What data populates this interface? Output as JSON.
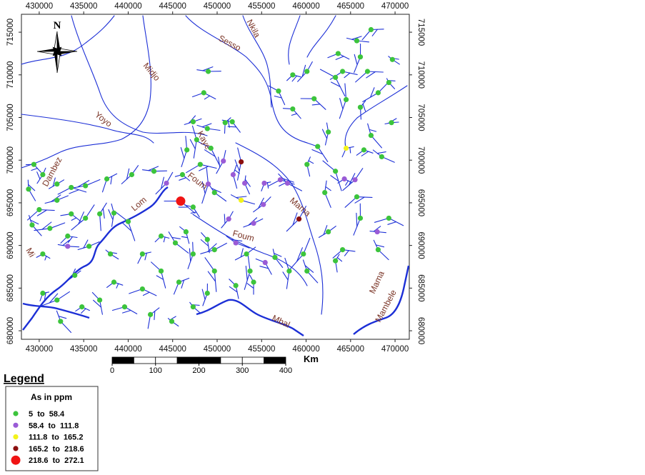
{
  "map": {
    "xlim": [
      428000,
      471600
    ],
    "ylim": [
      679000,
      717100
    ],
    "xticks": [
      430000,
      435000,
      440000,
      445000,
      450000,
      455000,
      460000,
      465000,
      470000
    ],
    "yticks": [
      680000,
      685000,
      690000,
      695000,
      700000,
      705000,
      710000,
      715000
    ],
    "north": "N",
    "rivers": [
      "Sesso",
      "Nkila",
      "Midjo",
      "Yoyo",
      "Dambez",
      "Lom",
      "Kaye",
      "Foum",
      "Foum",
      "Mama",
      "Mama",
      "Mbal",
      "Mambele",
      "Mi"
    ],
    "scale": {
      "ticks": [
        0,
        100,
        200,
        300,
        400
      ],
      "unit": "Km"
    },
    "legend": {
      "title": "Legend",
      "variable": "As in ppm",
      "classes": [
        {
          "label": "5  to  58.4",
          "color": "#3cc43c"
        },
        {
          "label": "58.4  to  111.8",
          "color": "#9a5bd6"
        },
        {
          "label": "111.8  to  165.2",
          "color": "#f2f21a"
        },
        {
          "label": "165.2  to  218.6",
          "color": "#8b0f0f"
        },
        {
          "label": "218.6  to  272.1",
          "color": "#f01414"
        }
      ]
    },
    "samples": [
      [
        445900,
        695200,
        4
      ],
      [
        452700,
        699800,
        3
      ],
      [
        459200,
        693100,
        3
      ],
      [
        452700,
        695300,
        2
      ],
      [
        464500,
        701400,
        2
      ],
      [
        451800,
        698300,
        1
      ],
      [
        453100,
        697300,
        1
      ],
      [
        455300,
        697300,
        1
      ],
      [
        457100,
        697700,
        1
      ],
      [
        457900,
        697300,
        1
      ],
      [
        455200,
        694800,
        1
      ],
      [
        451300,
        693100,
        1
      ],
      [
        454100,
        692600,
        1
      ],
      [
        452100,
        690300,
        1
      ],
      [
        455400,
        688000,
        1
      ],
      [
        433200,
        689900,
        1
      ],
      [
        464300,
        697800,
        1
      ],
      [
        465500,
        697700,
        1
      ],
      [
        468000,
        691600,
        1
      ],
      [
        450700,
        699900,
        1
      ],
      [
        444300,
        697300,
        1
      ],
      [
        449000,
        697200,
        1
      ],
      [
        467300,
        715300,
        0
      ],
      [
        465700,
        714000,
        0
      ],
      [
        463600,
        712500,
        0
      ],
      [
        466100,
        712100,
        0
      ],
      [
        460100,
        710400,
        0
      ],
      [
        458500,
        710000,
        0
      ],
      [
        456900,
        708100,
        0
      ],
      [
        463300,
        709700,
        0
      ],
      [
        469300,
        709100,
        0
      ],
      [
        469700,
        711800,
        0
      ],
      [
        466900,
        710400,
        0
      ],
      [
        464100,
        710400,
        0
      ],
      [
        458500,
        706000,
        0
      ],
      [
        460900,
        707200,
        0
      ],
      [
        466100,
        706200,
        0
      ],
      [
        464500,
        707100,
        0
      ],
      [
        468100,
        707900,
        0
      ],
      [
        469600,
        704400,
        0
      ],
      [
        467300,
        702900,
        0
      ],
      [
        466500,
        701200,
        0
      ],
      [
        468500,
        700400,
        0
      ],
      [
        462500,
        703300,
        0
      ],
      [
        461300,
        701600,
        0
      ],
      [
        460100,
        699500,
        0
      ],
      [
        463300,
        698700,
        0
      ],
      [
        462100,
        696200,
        0
      ],
      [
        465700,
        695700,
        0
      ],
      [
        469300,
        693200,
        0
      ],
      [
        466100,
        693200,
        0
      ],
      [
        462500,
        691600,
        0
      ],
      [
        464100,
        689500,
        0
      ],
      [
        468100,
        689500,
        0
      ],
      [
        463300,
        688200,
        0
      ],
      [
        459700,
        689000,
        0
      ],
      [
        460100,
        687000,
        0
      ],
      [
        458100,
        687000,
        0
      ],
      [
        449000,
        710400,
        0
      ],
      [
        448500,
        707900,
        0
      ],
      [
        447300,
        704500,
        0
      ],
      [
        448900,
        703700,
        0
      ],
      [
        450900,
        704400,
        0
      ],
      [
        451700,
        704500,
        0
      ],
      [
        447700,
        702400,
        0
      ],
      [
        446600,
        701200,
        0
      ],
      [
        449300,
        701400,
        0
      ],
      [
        448100,
        699500,
        0
      ],
      [
        446100,
        698300,
        0
      ],
      [
        449700,
        696200,
        0
      ],
      [
        447300,
        694500,
        0
      ],
      [
        446500,
        691600,
        0
      ],
      [
        445300,
        690300,
        0
      ],
      [
        448900,
        690700,
        0
      ],
      [
        447300,
        689000,
        0
      ],
      [
        449700,
        689500,
        0
      ],
      [
        453300,
        689000,
        0
      ],
      [
        453700,
        687000,
        0
      ],
      [
        449700,
        687000,
        0
      ],
      [
        452100,
        685300,
        0
      ],
      [
        454100,
        685700,
        0
      ],
      [
        456500,
        688600,
        0
      ],
      [
        429400,
        699500,
        0
      ],
      [
        430400,
        698300,
        0
      ],
      [
        432000,
        697200,
        0
      ],
      [
        433600,
        696800,
        0
      ],
      [
        435200,
        697000,
        0
      ],
      [
        437600,
        697800,
        0
      ],
      [
        440400,
        698300,
        0
      ],
      [
        442900,
        698700,
        0
      ],
      [
        428800,
        696600,
        0
      ],
      [
        430000,
        694200,
        0
      ],
      [
        432000,
        695300,
        0
      ],
      [
        433600,
        693700,
        0
      ],
      [
        435200,
        693200,
        0
      ],
      [
        436800,
        693700,
        0
      ],
      [
        438400,
        693800,
        0
      ],
      [
        440000,
        692800,
        0
      ],
      [
        429200,
        692400,
        0
      ],
      [
        431200,
        692000,
        0
      ],
      [
        433200,
        691100,
        0
      ],
      [
        435600,
        689900,
        0
      ],
      [
        438000,
        689000,
        0
      ],
      [
        441600,
        689000,
        0
      ],
      [
        443700,
        691100,
        0
      ],
      [
        430400,
        689000,
        0
      ],
      [
        434000,
        686500,
        0
      ],
      [
        438400,
        685700,
        0
      ],
      [
        441600,
        684900,
        0
      ],
      [
        443700,
        687000,
        0
      ],
      [
        445700,
        685700,
        0
      ],
      [
        436800,
        683600,
        0
      ],
      [
        439600,
        682800,
        0
      ],
      [
        442500,
        681900,
        0
      ],
      [
        444900,
        681100,
        0
      ],
      [
        447300,
        682800,
        0
      ],
      [
        448900,
        684400,
        0
      ],
      [
        432400,
        681100,
        0
      ],
      [
        434800,
        682800,
        0
      ],
      [
        432000,
        683600,
        0
      ],
      [
        430400,
        684400,
        0
      ]
    ]
  }
}
